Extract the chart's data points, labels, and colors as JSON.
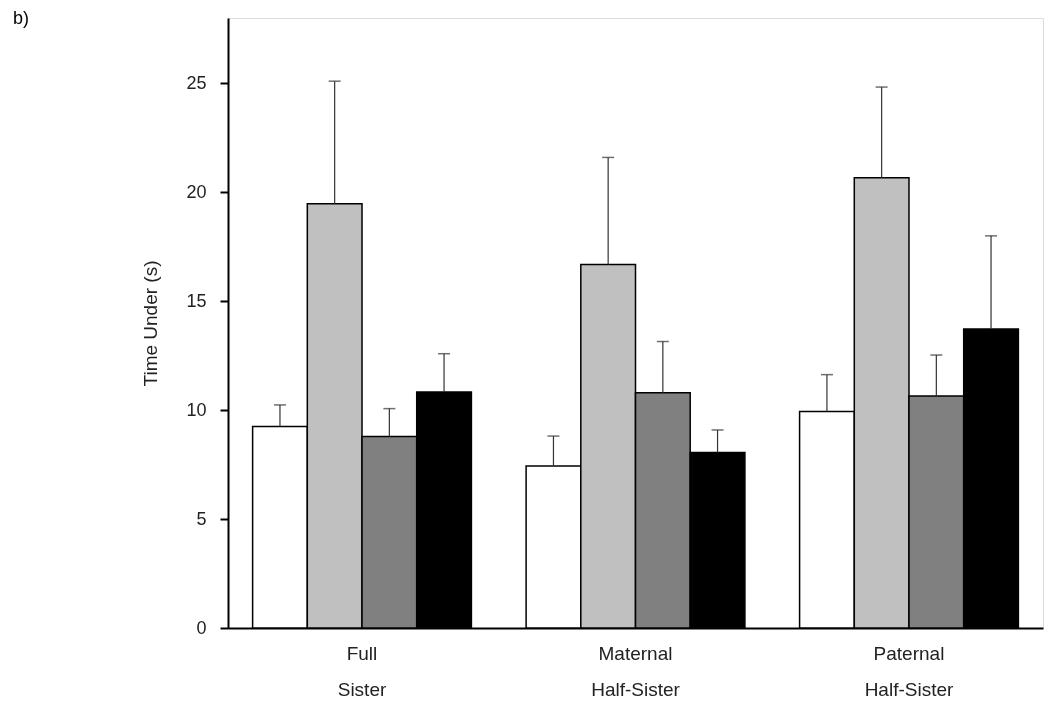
{
  "chart_data": {
    "type": "bar",
    "ylabel": "Time Under (s)",
    "annotations": [
      "b)"
    ],
    "categories": [
      "Full Sister",
      "Maternal Half-Sister",
      "Paternal Half-Sister"
    ],
    "ylim": [
      0,
      28
    ],
    "yticks": [
      0,
      5,
      10,
      15,
      20,
      25
    ],
    "grid": false,
    "series": [
      {
        "color": "#ffffff",
        "values": [
          9.25,
          7.44,
          9.94
        ],
        "errors": [
          [
            9.25,
            10.24
          ],
          [
            7.44,
            8.81
          ],
          [
            9.94,
            11.63
          ]
        ]
      },
      {
        "color": "#c0c0c0",
        "values": [
          19.47,
          16.68,
          20.67
        ],
        "errors": [
          [
            19.47,
            25.1
          ],
          [
            16.68,
            21.6
          ],
          [
            20.67,
            24.83
          ]
        ]
      },
      {
        "color": "#808080",
        "values": [
          8.79,
          10.8,
          10.65
        ],
        "errors": [
          [
            8.79,
            10.07
          ],
          [
            10.8,
            13.15
          ],
          [
            10.65,
            12.53
          ]
        ]
      },
      {
        "color": "#000000",
        "values": [
          10.83,
          8.06,
          13.73
        ],
        "errors": [
          [
            10.83,
            12.59
          ],
          [
            8.06,
            9.09
          ],
          [
            13.73,
            18.0
          ]
        ]
      }
    ]
  }
}
